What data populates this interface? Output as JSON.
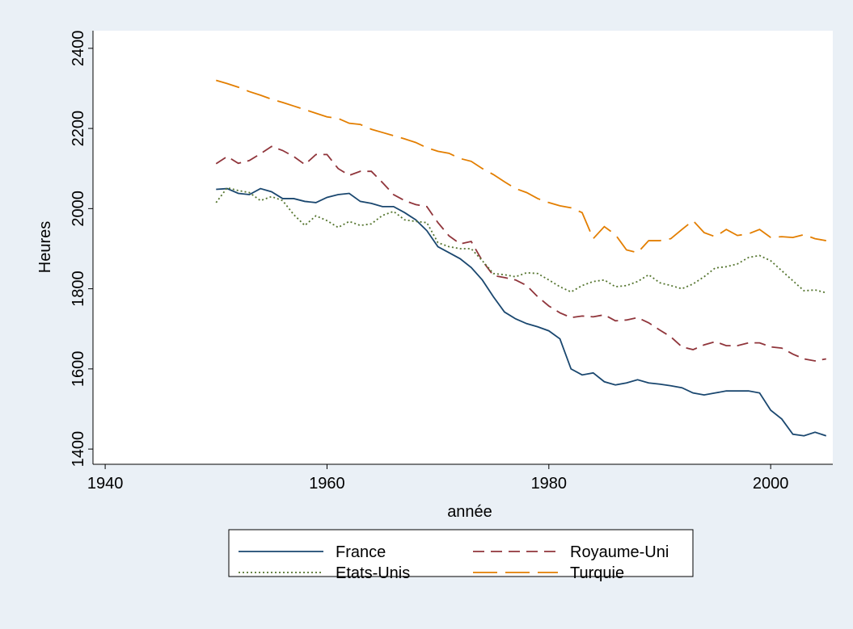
{
  "chart_data": {
    "type": "line",
    "x_label": "année",
    "y_label": "Heures",
    "x": [
      1950,
      1951,
      1952,
      1953,
      1954,
      1955,
      1956,
      1957,
      1958,
      1959,
      1960,
      1961,
      1962,
      1963,
      1964,
      1965,
      1966,
      1967,
      1968,
      1969,
      1970,
      1971,
      1972,
      1973,
      1974,
      1975,
      1976,
      1977,
      1978,
      1979,
      1980,
      1981,
      1982,
      1983,
      1984,
      1985,
      1986,
      1987,
      1988,
      1989,
      1990,
      1991,
      1992,
      1993,
      1994,
      1995,
      1996,
      1997,
      1998,
      1999,
      2000,
      2001,
      2002,
      2003,
      2004,
      2005
    ],
    "series": [
      {
        "name": "France",
        "color": "#1a476f",
        "dash": "none",
        "values": [
          2048,
          2050,
          2038,
          2035,
          2050,
          2042,
          2025,
          2025,
          2018,
          2015,
          2028,
          2035,
          2038,
          2018,
          2013,
          2005,
          2005,
          1990,
          1972,
          1945,
          1905,
          1890,
          1875,
          1853,
          1822,
          1780,
          1742,
          1725,
          1713,
          1705,
          1695,
          1675,
          1600,
          1585,
          1590,
          1568,
          1560,
          1565,
          1573,
          1565,
          1562,
          1558,
          1553,
          1540,
          1535,
          1540,
          1545,
          1545,
          1545,
          1540,
          1497,
          1475,
          1437,
          1433,
          1442,
          1433
        ]
      },
      {
        "name": "Royaume-Uni",
        "color": "#90353b",
        "dash": "14 8",
        "values": [
          2112,
          2130,
          2113,
          2120,
          2137,
          2155,
          2145,
          2130,
          2110,
          2135,
          2135,
          2100,
          2083,
          2093,
          2093,
          2065,
          2035,
          2020,
          2010,
          2005,
          1965,
          1932,
          1912,
          1918,
          1870,
          1833,
          1828,
          1822,
          1808,
          1780,
          1757,
          1740,
          1728,
          1732,
          1730,
          1735,
          1720,
          1722,
          1728,
          1715,
          1697,
          1680,
          1655,
          1648,
          1660,
          1668,
          1658,
          1658,
          1665,
          1665,
          1655,
          1652,
          1637,
          1625,
          1620,
          1625
        ]
      },
      {
        "name": "Etats-Unis",
        "color": "#55752f",
        "dash": "2 3",
        "values": [
          2015,
          2052,
          2045,
          2040,
          2020,
          2030,
          2020,
          1985,
          1958,
          1982,
          1970,
          1953,
          1968,
          1958,
          1962,
          1983,
          1993,
          1972,
          1968,
          1965,
          1915,
          1905,
          1900,
          1900,
          1870,
          1838,
          1835,
          1830,
          1840,
          1838,
          1822,
          1805,
          1792,
          1808,
          1818,
          1822,
          1805,
          1808,
          1818,
          1835,
          1815,
          1808,
          1800,
          1812,
          1830,
          1852,
          1855,
          1862,
          1878,
          1883,
          1870,
          1845,
          1820,
          1795,
          1797,
          1790
        ]
      },
      {
        "name": "Turquie",
        "color": "#e37e00",
        "dash": "30 10",
        "values": [
          2320,
          2312,
          2303,
          2292,
          2283,
          2273,
          2265,
          2256,
          2247,
          2238,
          2229,
          2225,
          2213,
          2210,
          2198,
          2190,
          2182,
          2174,
          2165,
          2152,
          2143,
          2138,
          2125,
          2118,
          2100,
          2085,
          2067,
          2050,
          2040,
          2025,
          2015,
          2007,
          2002,
          1990,
          1925,
          1955,
          1935,
          1897,
          1890,
          1920,
          1920,
          1925,
          1948,
          1970,
          1940,
          1930,
          1948,
          1933,
          1937,
          1948,
          1928,
          1930,
          1928,
          1935,
          1925,
          1920
        ]
      }
    ],
    "xlim": [
      1938.9,
      2005.6
    ],
    "ylim": [
      1362,
      2444
    ],
    "xticks": [
      1940,
      1960,
      1980,
      2000
    ],
    "yticks": [
      1400,
      1600,
      1800,
      2000,
      2200,
      2400
    ]
  }
}
